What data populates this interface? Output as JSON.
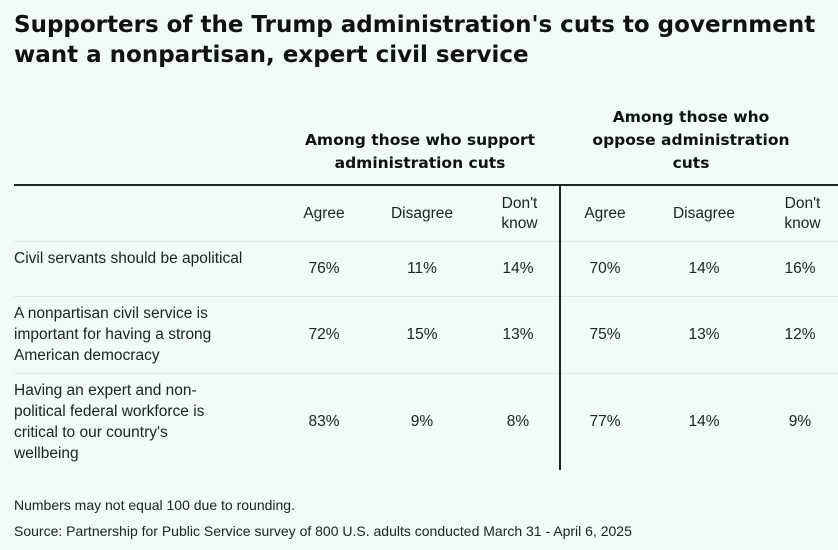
{
  "title": "Supporters of the Trump administration's cuts to government want a nonpartisan, expert civil service",
  "chart_data": {
    "type": "table",
    "groups": [
      {
        "label": "Among those who support administration cuts",
        "columns": [
          "Agree",
          "Disagree",
          "Don't know"
        ]
      },
      {
        "label": "Among those who oppose administration cuts",
        "columns": [
          "Agree",
          "Disagree",
          "Don't know"
        ]
      }
    ],
    "rows": [
      {
        "label": "Civil servants should be apolitical",
        "values": [
          "76%",
          "11%",
          "14%",
          "70%",
          "14%",
          "16%"
        ]
      },
      {
        "label": "A nonpartisan civil service is important for having a strong American democracy",
        "values": [
          "72%",
          "15%",
          "13%",
          "75%",
          "13%",
          "12%"
        ]
      },
      {
        "label": "Having an expert and non-political federal workforce is critical to our country's wellbeing",
        "values": [
          "83%",
          "9%",
          "8%",
          "77%",
          "14%",
          "9%"
        ]
      }
    ]
  },
  "notes": {
    "rounding": "Numbers may not equal 100 due to rounding.",
    "source": "Source: Partnership for Public Service survey of 800 U.S. adults conducted March 31 - April 6, 2025"
  },
  "colors": {
    "background": "#f0faf6",
    "rule": "#222222",
    "row_divider": "#d9ebe4"
  }
}
